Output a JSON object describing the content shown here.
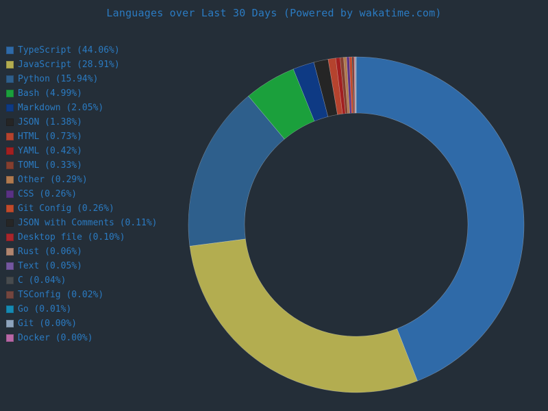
{
  "chart_data": {
    "type": "pie",
    "title": "Languages over Last 30 Days (Powered by wakatime.com)",
    "legend_position": "left",
    "slices": [
      {
        "name": "TypeScript",
        "label": "TypeScript (44.06%)",
        "value": 44.06,
        "color": "#2f6aa8"
      },
      {
        "name": "JavaScript",
        "label": "JavaScript (28.91%)",
        "value": 28.91,
        "color": "#b3ad50"
      },
      {
        "name": "Python",
        "label": "Python (15.94%)",
        "value": 15.94,
        "color": "#2e5f8c"
      },
      {
        "name": "Bash",
        "label": "Bash (4.99%)",
        "value": 4.99,
        "color": "#1ba03c"
      },
      {
        "name": "Markdown",
        "label": "Markdown (2.05%)",
        "value": 2.05,
        "color": "#0e3a84"
      },
      {
        "name": "JSON",
        "label": "JSON (1.38%)",
        "value": 1.38,
        "color": "#252525"
      },
      {
        "name": "HTML",
        "label": "HTML (0.73%)",
        "value": 0.73,
        "color": "#b5432e"
      },
      {
        "name": "YAML",
        "label": "YAML (0.42%)",
        "value": 0.42,
        "color": "#a21f20"
      },
      {
        "name": "TOML",
        "label": "TOML (0.33%)",
        "value": 0.33,
        "color": "#843f2f"
      },
      {
        "name": "Other",
        "label": "Other (0.29%)",
        "value": 0.29,
        "color": "#b07a4f"
      },
      {
        "name": "CSS",
        "label": "CSS (0.26%)",
        "value": 0.26,
        "color": "#5a3285"
      },
      {
        "name": "Git Config",
        "label": "Git Config (0.26%)",
        "value": 0.26,
        "color": "#c14a2b"
      },
      {
        "name": "JSON with Comments",
        "label": "JSON with Comments (0.11%)",
        "value": 0.11,
        "color": "#262626"
      },
      {
        "name": "Desktop file",
        "label": "Desktop file (0.10%)",
        "value": 0.1,
        "color": "#a9262c"
      },
      {
        "name": "Rust",
        "label": "Rust (0.06%)",
        "value": 0.06,
        "color": "#b08570"
      },
      {
        "name": "Text",
        "label": "Text (0.05%)",
        "value": 0.05,
        "color": "#7457a0"
      },
      {
        "name": "C",
        "label": "C (0.04%)",
        "value": 0.04,
        "color": "#474b4e"
      },
      {
        "name": "TSConfig",
        "label": "TSConfig (0.02%)",
        "value": 0.02,
        "color": "#74463f"
      },
      {
        "name": "Go",
        "label": "Go (0.01%)",
        "value": 0.01,
        "color": "#158ab3"
      },
      {
        "name": "Git",
        "label": "Git (0.00%)",
        "value": 0.0,
        "color": "#8ea4bd"
      },
      {
        "name": "Docker",
        "label": "Docker (0.00%)",
        "value": 0.0,
        "color": "#b867a6"
      }
    ]
  }
}
